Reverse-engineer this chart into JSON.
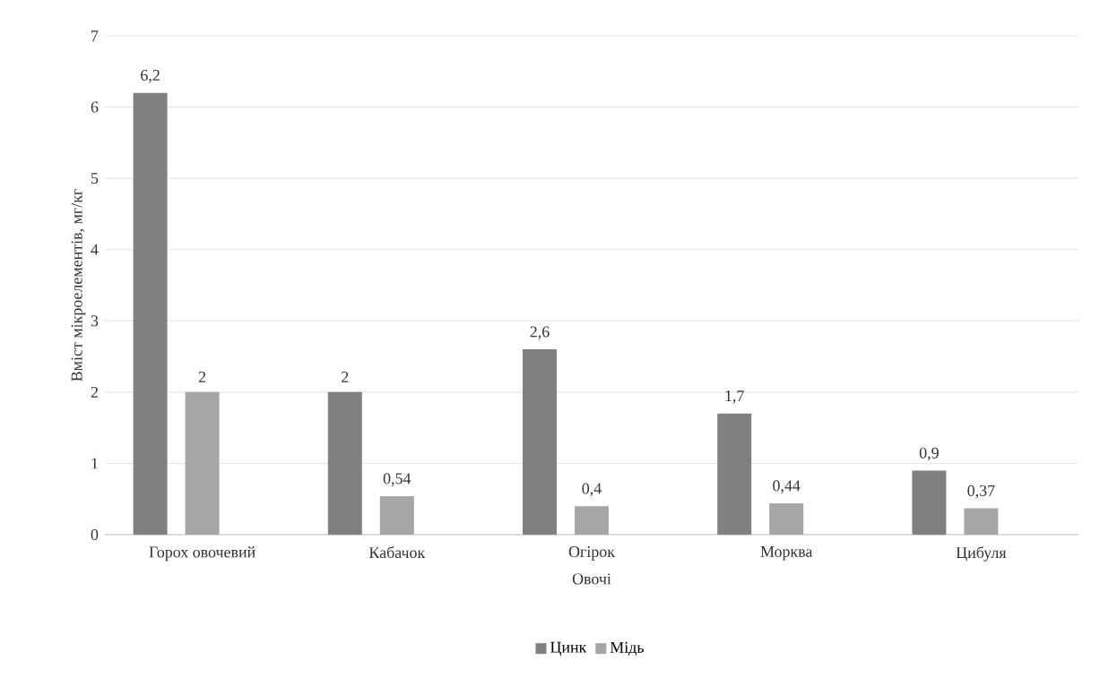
{
  "chart_data": {
    "type": "bar",
    "xlabel": "Овочі",
    "ylabel": "Вміст мікроелементів, мг/кг",
    "categories": [
      "Горох овочевий",
      "Кабачок",
      "Огірок",
      "Морква",
      "Цибуля"
    ],
    "series": [
      {
        "name": "Цинк",
        "color": "#808080",
        "values": [
          6.2,
          2,
          2.6,
          1.7,
          0.9
        ],
        "value_labels": [
          "6,2",
          "2",
          "2,6",
          "1,7",
          "0,9"
        ]
      },
      {
        "name": "Мідь",
        "color": "#a6a6a6",
        "values": [
          2,
          0.54,
          0.4,
          0.44,
          0.37
        ],
        "value_labels": [
          "2",
          "0,54",
          "0,4",
          "0,44",
          "0,37"
        ]
      }
    ],
    "ylim": [
      0,
      7
    ],
    "yticks": [
      0,
      1,
      2,
      3,
      4,
      5,
      6,
      7
    ],
    "grid": "y",
    "legend": "bottom"
  }
}
